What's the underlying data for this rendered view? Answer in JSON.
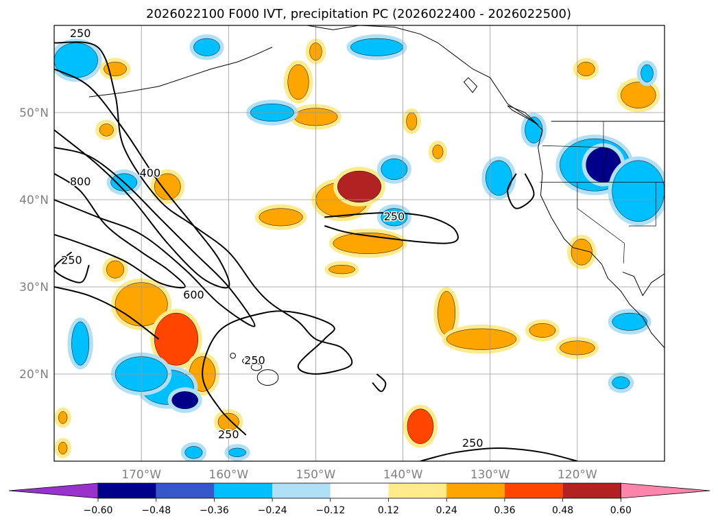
{
  "chart_data": {
    "type": "heatmap",
    "title": "2026022100 F000 IVT, precipitation PC (2026022400 - 2026022500)",
    "map_extent": {
      "lon": [
        -180,
        -110
      ],
      "lat": [
        10,
        60
      ]
    },
    "lat_ticks": [
      {
        "value": 20,
        "label": "20°N"
      },
      {
        "value": 30,
        "label": "30°N"
      },
      {
        "value": 40,
        "label": "40°N"
      },
      {
        "value": 50,
        "label": "50°N"
      }
    ],
    "lon_ticks": [
      {
        "value": -170,
        "label": "170°W"
      },
      {
        "value": -160,
        "label": "160°W"
      },
      {
        "value": -150,
        "label": "150°W"
      },
      {
        "value": -140,
        "label": "140°W"
      },
      {
        "value": -130,
        "label": "130°W"
      },
      {
        "value": -120,
        "label": "120°W"
      }
    ],
    "colorbar": {
      "levels": [
        -0.6,
        -0.48,
        -0.36,
        -0.24,
        -0.12,
        0.12,
        0.24,
        0.36,
        0.48,
        0.6
      ],
      "labels": [
        "−0.60",
        "−0.48",
        "−0.36",
        "−0.24",
        "−0.12",
        "0.12",
        "0.24",
        "0.36",
        "0.48",
        "0.60"
      ],
      "colors": [
        "#9932cc",
        "#00008b",
        "#3657c9",
        "#00bfff",
        "#b0e0f8",
        "#ffffff",
        "#ffeb8c",
        "#ffa500",
        "#ff4500",
        "#b22222",
        "#ff85ad"
      ],
      "extend": "both"
    },
    "ivt_contour_labels": [
      {
        "text": "250",
        "lon": -177,
        "lat": 59
      },
      {
        "text": "400",
        "lon": -169,
        "lat": 43
      },
      {
        "text": "800",
        "lon": -177,
        "lat": 42
      },
      {
        "text": "250",
        "lon": -178,
        "lat": 33
      },
      {
        "text": "600",
        "lon": -164,
        "lat": 29
      },
      {
        "text": "250",
        "lon": -141,
        "lat": 38
      },
      {
        "text": "250",
        "lon": -157,
        "lat": 21.5
      },
      {
        "text": "250",
        "lon": -160,
        "lat": 13
      },
      {
        "text": "250",
        "lon": -132,
        "lat": 12
      }
    ],
    "ivt_contours": [
      {
        "level": 250,
        "points": [
          [
            -180,
            58
          ],
          [
            -175,
            57.5
          ],
          [
            -173,
            52
          ],
          [
            -172,
            46
          ],
          [
            -168,
            40
          ],
          [
            -164,
            37
          ],
          [
            -160,
            34
          ],
          [
            -157,
            30
          ],
          [
            -155,
            28
          ],
          [
            -152,
            26
          ],
          [
            -150,
            24
          ],
          [
            -147,
            23
          ],
          [
            -146,
            21
          ],
          [
            -150,
            20
          ],
          [
            -152,
            21
          ],
          [
            -149,
            24
          ],
          [
            -148,
            25.5
          ],
          [
            -152,
            27
          ],
          [
            -156,
            27
          ],
          [
            -161,
            25
          ],
          [
            -163,
            20
          ],
          [
            -161,
            16
          ],
          [
            -158,
            13
          ]
        ]
      },
      {
        "level": 250,
        "points": [
          [
            -180,
            30
          ],
          [
            -176,
            29
          ],
          [
            -172,
            27
          ],
          [
            -168,
            24
          ]
        ]
      },
      {
        "level": 250,
        "points": [
          [
            -180,
            46
          ],
          [
            -176,
            45
          ],
          [
            -172,
            42
          ],
          [
            -168,
            38
          ],
          [
            -164,
            34
          ],
          [
            -160,
            30
          ],
          [
            -157,
            25.5
          ],
          [
            -161,
            28
          ],
          [
            -165,
            32
          ],
          [
            -170,
            36
          ],
          [
            -175,
            38
          ],
          [
            -180,
            40
          ]
        ]
      },
      {
        "level": 400,
        "points": [
          [
            -180,
            55
          ],
          [
            -176,
            53
          ],
          [
            -172,
            48
          ],
          [
            -168,
            42
          ],
          [
            -164,
            37
          ],
          [
            -161,
            33
          ],
          [
            -160,
            30
          ],
          [
            -163,
            31
          ],
          [
            -167,
            35
          ],
          [
            -171,
            40
          ],
          [
            -175,
            44
          ],
          [
            -180,
            48
          ]
        ]
      },
      {
        "level": 800,
        "points": [
          [
            -180,
            43
          ],
          [
            -177,
            41
          ],
          [
            -174,
            37
          ],
          [
            -170,
            34
          ],
          [
            -167,
            32
          ],
          [
            -165,
            30
          ],
          [
            -168,
            30.5
          ],
          [
            -172,
            33
          ],
          [
            -177,
            35
          ],
          [
            -180,
            36
          ]
        ]
      },
      {
        "level": 250,
        "points": [
          [
            -178,
            34
          ],
          [
            -180,
            32
          ],
          [
            -177,
            30.5
          ],
          [
            -176,
            32.5
          ]
        ]
      },
      {
        "level": 250,
        "points": [
          [
            -149,
            38
          ],
          [
            -142,
            38.5
          ],
          [
            -137,
            38
          ],
          [
            -134,
            36.5
          ],
          [
            -135,
            35
          ],
          [
            -145,
            36
          ],
          [
            -149,
            37
          ]
        ]
      },
      {
        "level": 250,
        "points": [
          [
            -126,
            43
          ],
          [
            -125,
            40.5
          ],
          [
            -127,
            39
          ],
          [
            -128,
            41
          ],
          [
            -127,
            43
          ]
        ]
      },
      {
        "level": 250,
        "points": [
          [
            -143,
            20
          ],
          [
            -142,
            19
          ],
          [
            -142.5,
            18
          ],
          [
            -143.5,
            19
          ]
        ]
      },
      {
        "level": 250,
        "points": [
          [
            -138,
            10
          ],
          [
            -134,
            11
          ],
          [
            -129,
            11.5
          ],
          [
            -124,
            11
          ],
          [
            -120,
            10
          ]
        ]
      }
    ],
    "precip_blobs": [
      {
        "value": 0.35,
        "lon": -170,
        "lat": 28,
        "rx": 3,
        "ry": 2.5
      },
      {
        "value": 0.45,
        "lon": -166,
        "lat": 24,
        "rx": 2.5,
        "ry": 3
      },
      {
        "value": 0.3,
        "lon": -163,
        "lat": 20,
        "rx": 1.5,
        "ry": 2
      },
      {
        "value": 0.3,
        "lon": -147,
        "lat": 40,
        "rx": 3,
        "ry": 2
      },
      {
        "value": 0.5,
        "lon": -145,
        "lat": 41.5,
        "rx": 2.5,
        "ry": 1.8
      },
      {
        "value": 0.3,
        "lon": -144,
        "lat": 35,
        "rx": 4,
        "ry": 1.2
      },
      {
        "value": 0.3,
        "lon": -154,
        "lat": 38,
        "rx": 2.5,
        "ry": 1
      },
      {
        "value": 0.3,
        "lon": -152,
        "lat": 53.5,
        "rx": 1.2,
        "ry": 2
      },
      {
        "value": 0.3,
        "lon": -150,
        "lat": 49.5,
        "rx": 2.5,
        "ry": 1
      },
      {
        "value": 0.3,
        "lon": -135,
        "lat": 27,
        "rx": 1,
        "ry": 2.5
      },
      {
        "value": 0.3,
        "lon": -131,
        "lat": 24,
        "rx": 4,
        "ry": 1.2
      },
      {
        "value": 0.35,
        "lon": -124,
        "lat": 25,
        "rx": 1.5,
        "ry": 0.8
      },
      {
        "value": 0.3,
        "lon": -120,
        "lat": 23,
        "rx": 2,
        "ry": 0.8
      },
      {
        "value": 0.4,
        "lon": -138,
        "lat": 14,
        "rx": 1.5,
        "ry": 2
      },
      {
        "value": 0.3,
        "lon": -119.5,
        "lat": 34,
        "rx": 1.2,
        "ry": 1.5
      },
      {
        "value": 0.3,
        "lon": -113,
        "lat": 52,
        "rx": 2,
        "ry": 1.5
      },
      {
        "value": 0.3,
        "lon": -173,
        "lat": 32,
        "rx": 1,
        "ry": 1
      },
      {
        "value": 0.3,
        "lon": -167,
        "lat": 41.5,
        "rx": 1.5,
        "ry": 1.5
      },
      {
        "value": 0.3,
        "lon": -174,
        "lat": 48,
        "rx": 0.8,
        "ry": 0.7
      },
      {
        "value": 0.3,
        "lon": -173,
        "lat": 55,
        "rx": 1.3,
        "ry": 0.8
      },
      {
        "value": 0.3,
        "lon": -160,
        "lat": 14.5,
        "rx": 1.2,
        "ry": 1
      },
      {
        "value": 0.3,
        "lon": -179,
        "lat": 15,
        "rx": 0.5,
        "ry": 0.7
      },
      {
        "value": 0.3,
        "lon": -179,
        "lat": 11.5,
        "rx": 0.5,
        "ry": 0.7
      },
      {
        "value": 0.3,
        "lon": -150,
        "lat": 57,
        "rx": 0.7,
        "ry": 1
      },
      {
        "value": 0.3,
        "lon": -119,
        "lat": 55,
        "rx": 1,
        "ry": 0.8
      },
      {
        "value": 0.3,
        "lon": -139,
        "lat": 49,
        "rx": 0.6,
        "ry": 1
      },
      {
        "value": 0.3,
        "lon": -136,
        "lat": 45.5,
        "rx": 0.6,
        "ry": 0.8
      },
      {
        "value": 0.3,
        "lon": -147,
        "lat": 32,
        "rx": 1.5,
        "ry": 0.5
      },
      {
        "value": -0.35,
        "lon": -167,
        "lat": 18.5,
        "rx": 3,
        "ry": 2
      },
      {
        "value": -0.5,
        "lon": -165,
        "lat": 17,
        "rx": 1.5,
        "ry": 1
      },
      {
        "value": -0.3,
        "lon": -170,
        "lat": 20,
        "rx": 3,
        "ry": 2
      },
      {
        "value": -0.35,
        "lon": -177,
        "lat": 23.5,
        "rx": 1,
        "ry": 2.5
      },
      {
        "value": -0.35,
        "lon": -118,
        "lat": 44,
        "rx": 4,
        "ry": 3
      },
      {
        "value": -0.55,
        "lon": -117,
        "lat": 44,
        "rx": 2,
        "ry": 2
      },
      {
        "value": -0.3,
        "lon": -113,
        "lat": 41,
        "rx": 3,
        "ry": 3.5
      },
      {
        "value": -0.3,
        "lon": -141,
        "lat": 43.5,
        "rx": 1.5,
        "ry": 1.2
      },
      {
        "value": -0.3,
        "lon": -129,
        "lat": 42.5,
        "rx": 1.5,
        "ry": 2
      },
      {
        "value": -0.3,
        "lon": -125,
        "lat": 48,
        "rx": 1,
        "ry": 1.5
      },
      {
        "value": -0.25,
        "lon": -155,
        "lat": 50,
        "rx": 2.5,
        "ry": 1
      },
      {
        "value": -0.25,
        "lon": -143,
        "lat": 57.5,
        "rx": 3,
        "ry": 1
      },
      {
        "value": -0.25,
        "lon": -162.5,
        "lat": 57.5,
        "rx": 1.5,
        "ry": 1
      },
      {
        "value": -0.25,
        "lon": -177.5,
        "lat": 56,
        "rx": 2.5,
        "ry": 2
      },
      {
        "value": -0.25,
        "lon": -172,
        "lat": 42,
        "rx": 1.5,
        "ry": 1
      },
      {
        "value": -0.3,
        "lon": -141,
        "lat": 38,
        "rx": 1.5,
        "ry": 1
      },
      {
        "value": -0.3,
        "lon": -114,
        "lat": 26,
        "rx": 2,
        "ry": 1
      },
      {
        "value": -0.25,
        "lon": -115,
        "lat": 19,
        "rx": 1,
        "ry": 0.7
      },
      {
        "value": -0.25,
        "lon": -112,
        "lat": 54.5,
        "rx": 0.7,
        "ry": 1
      },
      {
        "value": -0.25,
        "lon": -159,
        "lat": 11,
        "rx": 1,
        "ry": 0.5
      },
      {
        "value": -0.25,
        "lon": -164,
        "lat": 11,
        "rx": 1,
        "ry": 0.7
      }
    ]
  }
}
